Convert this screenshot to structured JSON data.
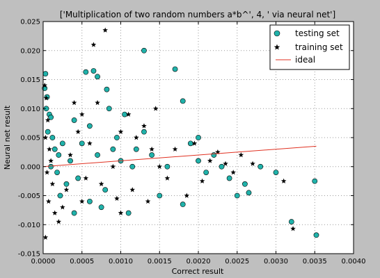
{
  "chart_data": {
    "type": "scatter",
    "title": "['Multiplication of two random numbers a*b^', 4, ' via neural net']",
    "xlabel": "Correct result",
    "ylabel": "Neural net result",
    "xlim": [
      0,
      0.004
    ],
    "ylim": [
      -0.015,
      0.025
    ],
    "x_ticks": [
      "0.0000",
      "0.0005",
      "0.0010",
      "0.0015",
      "0.0020",
      "0.0025",
      "0.0030",
      "0.0035",
      "0.0040"
    ],
    "y_ticks": [
      "0.025",
      "0.020",
      "0.015",
      "0.010",
      "0.005",
      "0.000",
      "-0.005",
      "-0.010",
      "-0.015"
    ],
    "x_tick_values": [
      0,
      0.0005,
      0.001,
      0.0015,
      0.002,
      0.0025,
      0.003,
      0.0035,
      0.004
    ],
    "y_tick_values": [
      0.025,
      0.02,
      0.015,
      0.01,
      0.005,
      0.0,
      -0.005,
      -0.01,
      -0.015
    ],
    "grid": true,
    "legend_position": "top-right",
    "colors": {
      "testing": "#20b2aa",
      "training": "#000000",
      "ideal": "#e03020",
      "background": "#bfbfbf",
      "plot": "#ffffff"
    },
    "series": [
      {
        "name": "testing set",
        "marker": "circle",
        "points": [
          [
            3e-05,
            0.016
          ],
          [
            2e-05,
            0.0135
          ],
          [
            5e-05,
            0.012
          ],
          [
            4e-05,
            0.01
          ],
          [
            8e-05,
            0.009
          ],
          [
            0.0001,
            0.0085
          ],
          [
            6e-05,
            0.006
          ],
          [
            0.00012,
            0.005
          ],
          [
            0.00015,
            0.003
          ],
          [
            0.0002,
            0.002
          ],
          [
            0.00025,
            0.004
          ],
          [
            0.0001,
            0.0
          ],
          [
            0.00018,
            -0.001
          ],
          [
            0.0003,
            -0.003
          ],
          [
            0.00022,
            -0.005
          ],
          [
            0.00035,
            0.001
          ],
          [
            0.0004,
            0.008
          ],
          [
            0.00045,
            -0.002
          ],
          [
            0.0005,
            0.004
          ],
          [
            0.00055,
            0.0163
          ],
          [
            0.00065,
            0.0165
          ],
          [
            0.0007,
            0.0155
          ],
          [
            0.00082,
            0.0133
          ],
          [
            0.0006,
            0.007
          ],
          [
            0.00075,
            -0.007
          ],
          [
            0.0009,
            0.003
          ],
          [
            0.00095,
            0.005
          ],
          [
            0.001,
            0.001
          ],
          [
            0.00105,
            0.009
          ],
          [
            0.0011,
            -0.008
          ],
          [
            0.00115,
            0.0
          ],
          [
            0.0012,
            0.003
          ],
          [
            0.0013,
            0.02
          ],
          [
            0.0014,
            0.002
          ],
          [
            0.0015,
            -0.005
          ],
          [
            0.0016,
            0.0
          ],
          [
            0.0017,
            0.0168
          ],
          [
            0.0018,
            0.0113
          ],
          [
            0.0019,
            0.004
          ],
          [
            0.002,
            0.001
          ],
          [
            0.0021,
            -0.001
          ],
          [
            0.0022,
            0.002
          ],
          [
            0.0023,
            0.0
          ],
          [
            0.0024,
            -0.002
          ],
          [
            0.0025,
            -0.005
          ],
          [
            0.0026,
            -0.003
          ],
          [
            0.0028,
            0.0
          ],
          [
            0.003,
            -0.001
          ],
          [
            0.0032,
            -0.0095
          ],
          [
            0.0035,
            -0.0025
          ],
          [
            0.00352,
            -0.0118
          ],
          [
            0.0004,
            -0.008
          ],
          [
            0.0006,
            -0.006
          ],
          [
            0.0008,
            -0.004
          ],
          [
            0.00085,
            0.01
          ],
          [
            0.0013,
            0.006
          ],
          [
            0.0018,
            -0.0065
          ],
          [
            0.002,
            0.005
          ],
          [
            0.00265,
            -0.0045
          ],
          [
            0.0007,
            0.002
          ]
        ]
      },
      {
        "name": "training set",
        "marker": "star",
        "points": [
          [
            2e-05,
            0.014
          ],
          [
            4e-05,
            0.0118
          ],
          [
            6e-05,
            0.008
          ],
          [
            3e-05,
            0.005
          ],
          [
            8e-05,
            0.003
          ],
          [
            0.0001,
            0.001
          ],
          [
            5e-05,
            -0.001
          ],
          [
            0.00012,
            -0.003
          ],
          [
            7e-05,
            -0.006
          ],
          [
            3e-05,
            -0.0122
          ],
          [
            0.00015,
            -0.008
          ],
          [
            0.0002,
            -0.0095
          ],
          [
            0.00025,
            -0.007
          ],
          [
            0.0003,
            -0.004
          ],
          [
            0.00035,
            0.002
          ],
          [
            0.0004,
            0.011
          ],
          [
            0.00045,
            0.006
          ],
          [
            0.0005,
            0.009
          ],
          [
            0.00055,
            -0.002
          ],
          [
            0.0006,
            0.004
          ],
          [
            0.00065,
            0.021
          ],
          [
            0.0008,
            0.0235
          ],
          [
            0.0007,
            0.011
          ],
          [
            0.0009,
            0.0
          ],
          [
            0.001,
            0.006
          ],
          [
            0.0011,
            0.009
          ],
          [
            0.0012,
            0.005
          ],
          [
            0.0013,
            0.007
          ],
          [
            0.0014,
            0.003
          ],
          [
            0.0015,
            0.0
          ],
          [
            0.0016,
            -0.002
          ],
          [
            0.0017,
            0.003
          ],
          [
            0.00185,
            -0.005
          ],
          [
            0.00195,
            0.004
          ],
          [
            0.00205,
            -0.0025
          ],
          [
            0.00215,
            0.001
          ],
          [
            0.00225,
            0.0025
          ],
          [
            0.00235,
            0.0005
          ],
          [
            0.00245,
            -0.001
          ],
          [
            0.00255,
            0.002
          ],
          [
            0.0027,
            0.0005
          ],
          [
            0.0031,
            -0.0025
          ],
          [
            0.00322,
            -0.0107
          ],
          [
            0.0005,
            -0.006
          ],
          [
            0.00075,
            -0.003
          ],
          [
            0.00095,
            -0.0055
          ],
          [
            0.00115,
            -0.004
          ],
          [
            0.00135,
            -0.006
          ],
          [
            0.00145,
            0.01
          ],
          [
            0.001,
            -0.008
          ]
        ]
      },
      {
        "name": "ideal",
        "marker": "line",
        "points": [
          [
            0,
            0
          ],
          [
            0.00352,
            0.00352
          ]
        ]
      }
    ]
  }
}
